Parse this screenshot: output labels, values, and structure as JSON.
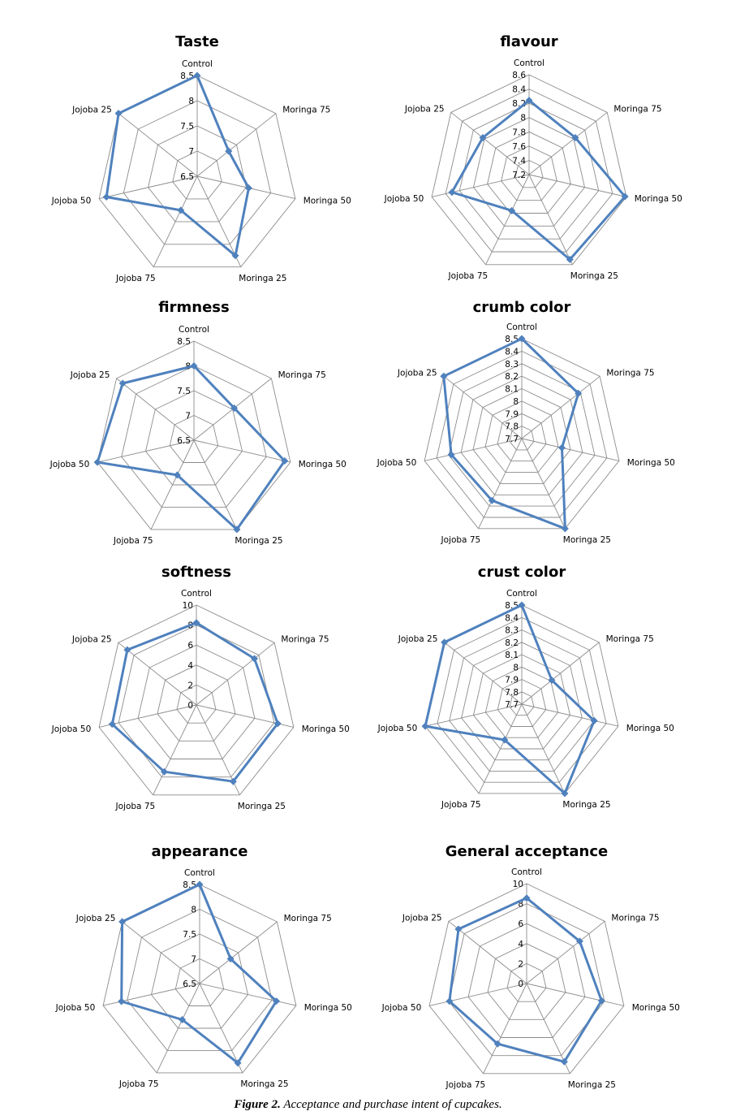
{
  "figure": {
    "caption_label": "Figure 2.",
    "caption_text": " Acceptance and purchase intent of cupcakes."
  },
  "style": {
    "series_color": "#4F81BD",
    "grid_color": "#8C8C8C"
  },
  "chart_data": [
    {
      "type": "radar",
      "title": "Taste",
      "categories": [
        "Control",
        "Moringa 75",
        "Moringa 50",
        "Moringa 25",
        "Jojoba 75",
        "Jojoba 50",
        "Jojoba 25"
      ],
      "series": [
        {
          "name": "Taste",
          "values": [
            8.5,
            7.3,
            7.55,
            8.25,
            7.25,
            8.35,
            8.5
          ]
        }
      ],
      "rlim": [
        6.5,
        8.5
      ],
      "ticks": [
        "6.5",
        "7",
        "7.5",
        "8",
        "8.5"
      ],
      "grid": true,
      "legend": "none"
    },
    {
      "type": "radar",
      "title": "flavour",
      "categories": [
        "Control",
        "Moringa 75",
        "Moringa 50",
        "Moringa 25",
        "Jojoba 75",
        "Jojoba 50",
        "Jojoba 25"
      ],
      "series": [
        {
          "name": "flavour",
          "values": [
            8.24,
            8.03,
            8.58,
            8.52,
            7.76,
            8.31,
            8.03
          ]
        }
      ],
      "rlim": [
        7.2,
        8.6
      ],
      "ticks": [
        "7.2",
        "7.4",
        "7.6",
        "7.8",
        "8",
        "8.2",
        "8.4",
        "8.6"
      ],
      "grid": true,
      "legend": "none"
    },
    {
      "type": "radar",
      "title": "firmness",
      "categories": [
        "Control",
        "Moringa 75",
        "Moringa 50",
        "Moringa 25",
        "Jojoba 75",
        "Jojoba 50",
        "Jojoba 25"
      ],
      "series": [
        {
          "name": "firmness",
          "values": [
            8.0,
            7.54,
            8.38,
            8.5,
            7.28,
            8.5,
            8.34
          ]
        }
      ],
      "rlim": [
        6.5,
        8.5
      ],
      "ticks": [
        "6.5",
        "7",
        "7.5",
        "8",
        "8.5"
      ],
      "grid": true,
      "legend": "none"
    },
    {
      "type": "radar",
      "title": "crumb color",
      "categories": [
        "Control",
        "Moringa 75",
        "Moringa 50",
        "Moringa 25",
        "Jojoba 75",
        "Jojoba 50",
        "Jojoba 25"
      ],
      "series": [
        {
          "name": "crumb color",
          "values": [
            8.5,
            8.28,
            8.03,
            8.5,
            8.25,
            8.28,
            8.5
          ]
        }
      ],
      "rlim": [
        7.7,
        8.5
      ],
      "ticks": [
        "7.7",
        "7.8",
        "7.9",
        "8",
        "8.1",
        "8.2",
        "8.3",
        "8.4",
        "8.5"
      ],
      "grid": true,
      "legend": "none"
    },
    {
      "type": "radar",
      "title": "softness",
      "categories": [
        "Control",
        "Moringa 75",
        "Moringa 50",
        "Moringa 25",
        "Jojoba 75",
        "Jojoba 50",
        "Jojoba 25"
      ],
      "series": [
        {
          "name": "softness",
          "values": [
            8.23,
            7.44,
            8.36,
            8.5,
            7.42,
            8.65,
            8.85
          ]
        }
      ],
      "rlim": [
        0,
        10
      ],
      "ticks": [
        "0",
        "2",
        "4",
        "6",
        "8",
        "10"
      ],
      "grid": true,
      "legend": "none"
    },
    {
      "type": "radar",
      "title": "crust color",
      "categories": [
        "Control",
        "Moringa 75",
        "Moringa 50",
        "Moringa 25",
        "Jojoba 75",
        "Jojoba 50",
        "Jojoba 25"
      ],
      "series": [
        {
          "name": "crust color",
          "values": [
            8.5,
            8.01,
            8.3,
            8.5,
            8.02,
            8.5,
            8.5
          ]
        }
      ],
      "rlim": [
        7.7,
        8.5
      ],
      "ticks": [
        "7.7",
        "7.8",
        "7.9",
        "8",
        "8.1",
        "8.2",
        "8.3",
        "8.4",
        "8.5"
      ],
      "grid": true,
      "legend": "none"
    },
    {
      "type": "radar",
      "title": "appearance",
      "categories": [
        "Control",
        "Moringa 75",
        "Moringa 50",
        "Moringa 25",
        "Jojoba 75",
        "Jojoba 50",
        "Jojoba 25"
      ],
      "series": [
        {
          "name": "appearance",
          "values": [
            8.5,
            7.3,
            8.09,
            8.28,
            7.31,
            8.12,
            8.5
          ]
        }
      ],
      "rlim": [
        6.5,
        8.5
      ],
      "ticks": [
        "6.5",
        "7",
        "7.5",
        "8",
        "8.5"
      ],
      "grid": true,
      "legend": "none"
    },
    {
      "type": "radar",
      "title": "General acceptance",
      "categories": [
        "Control",
        "Moringa 75",
        "Moringa 50",
        "Moringa 25",
        "Jojoba 75",
        "Jojoba 50",
        "Jojoba 25"
      ],
      "series": [
        {
          "name": "General acceptance",
          "values": [
            8.56,
            6.8,
            7.7,
            8.69,
            6.7,
            7.93,
            8.74
          ]
        }
      ],
      "rlim": [
        0,
        10
      ],
      "ticks": [
        "0",
        "2",
        "4",
        "6",
        "8",
        "10"
      ],
      "grid": true,
      "legend": "none"
    }
  ]
}
